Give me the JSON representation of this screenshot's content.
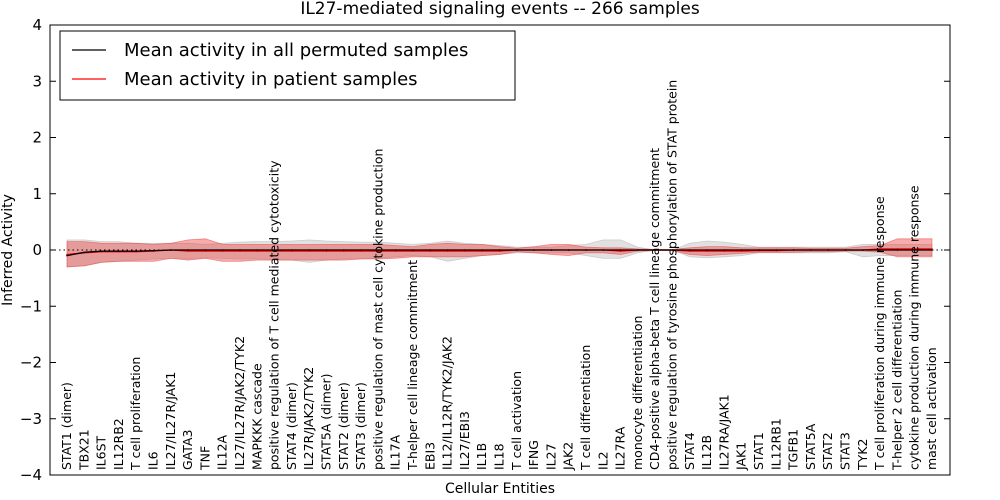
{
  "chart_data": {
    "type": "line",
    "title": "IL27-mediated signaling events -- 266 samples",
    "xlabel": "Cellular Entities",
    "ylabel": "Inferred Activity",
    "ylim": [
      -4,
      4
    ],
    "yticks": [
      -4,
      -3,
      -2,
      -1,
      0,
      1,
      2,
      3,
      4
    ],
    "ytick_labels": [
      "−4",
      "−3",
      "−2",
      "−1",
      "0",
      "1",
      "2",
      "3",
      "4"
    ],
    "categories": [
      "STAT1 (dimer)",
      "TBX21",
      "IL6ST",
      "IL12RB2",
      "T cell proliferation",
      "IL6",
      "IL27/IL27R/JAK1",
      "GATA3",
      "TNF",
      "IL12A",
      "IL27/IL27R/JAK2/TYK2",
      "MAPKKK cascade",
      "positive regulation of T cell mediated cytotoxicity",
      "STAT4 (dimer)",
      "IL27R/JAK2/TYK2",
      "STAT5A (dimer)",
      "STAT2 (dimer)",
      "STAT3 (dimer)",
      "positive regulation of mast cell cytokine production",
      "IL17A",
      "T-helper cell lineage commitment",
      "EBI3",
      "IL12/IL12R/TYK2/JAK2",
      "IL27/EBI3",
      "IL1B",
      "IL18",
      "T cell activation",
      "IFNG",
      "IL27",
      "JAK2",
      "T cell differentiation",
      "IL2",
      "IL27RA",
      "monocyte differentiation",
      "CD4-positive alpha-beta T cell lineage commitment",
      "positive regulation of tyrosine phosphorylation of STAT protein",
      "STAT4",
      "IL12B",
      "IL27RA/JAK1",
      "JAK1",
      "STAT1",
      "IL12RB1",
      "TGFB1",
      "STAT5A",
      "STAT2",
      "STAT3",
      "TYK2",
      "T cell proliferation during immune response",
      "T-helper 2 cell differentiation",
      "cytokine production during immune response",
      "mast cell activation"
    ],
    "series": [
      {
        "name": "Mean activity in all permuted samples",
        "color": "#000000",
        "values": [
          -0.1,
          -0.04,
          -0.02,
          -0.02,
          -0.02,
          -0.01,
          0.0,
          0.0,
          0.0,
          0.0,
          0.0,
          0.0,
          0.0,
          0.0,
          0.0,
          0.0,
          0.0,
          0.0,
          0.0,
          0.0,
          0.0,
          0.0,
          0.0,
          0.0,
          0.0,
          0.0,
          0.0,
          0.0,
          0.0,
          0.0,
          0.0,
          0.0,
          0.0,
          0.0,
          0.0,
          0.0,
          0.0,
          0.0,
          0.0,
          0.0,
          0.0,
          0.0,
          0.0,
          0.0,
          0.0,
          0.0,
          0.0,
          0.0,
          0.0,
          0.0,
          0.0
        ],
        "band_low": [
          -0.3,
          -0.28,
          -0.22,
          -0.2,
          -0.18,
          -0.16,
          -0.15,
          -0.16,
          -0.14,
          -0.15,
          -0.16,
          -0.16,
          -0.17,
          -0.18,
          -0.22,
          -0.18,
          -0.16,
          -0.16,
          -0.15,
          -0.12,
          -0.1,
          -0.12,
          -0.2,
          -0.15,
          -0.1,
          -0.08,
          -0.05,
          -0.05,
          -0.05,
          -0.05,
          -0.1,
          -0.15,
          -0.15,
          -0.05,
          0.0,
          0.0,
          -0.12,
          -0.14,
          -0.12,
          -0.1,
          -0.05,
          -0.05,
          -0.05,
          -0.05,
          -0.05,
          -0.03,
          -0.12,
          -0.1,
          -0.1,
          -0.1,
          -0.1
        ],
        "band_high": [
          0.18,
          0.18,
          0.15,
          0.15,
          0.12,
          0.12,
          0.12,
          0.12,
          0.1,
          0.12,
          0.14,
          0.15,
          0.15,
          0.16,
          0.18,
          0.16,
          0.15,
          0.14,
          0.14,
          0.12,
          0.1,
          0.12,
          0.16,
          0.12,
          0.1,
          0.08,
          0.05,
          0.05,
          0.05,
          0.08,
          0.1,
          0.18,
          0.18,
          0.05,
          0.0,
          0.0,
          0.12,
          0.16,
          0.14,
          0.1,
          0.05,
          0.05,
          0.05,
          0.05,
          0.05,
          0.05,
          0.1,
          0.1,
          0.1,
          0.1,
          0.1
        ]
      },
      {
        "name": "Mean activity in patient samples",
        "color": "#ff0000",
        "values": [
          -0.08,
          -0.05,
          -0.03,
          -0.03,
          -0.03,
          -0.02,
          0.0,
          -0.02,
          -0.02,
          -0.02,
          -0.02,
          -0.02,
          -0.02,
          -0.02,
          -0.02,
          -0.02,
          -0.02,
          -0.02,
          -0.02,
          -0.02,
          -0.02,
          -0.02,
          -0.02,
          -0.02,
          -0.02,
          -0.02,
          0.0,
          0.0,
          0.0,
          0.0,
          0.0,
          0.0,
          -0.02,
          0.0,
          0.0,
          0.0,
          -0.02,
          -0.02,
          -0.02,
          -0.02,
          -0.01,
          -0.01,
          0.0,
          0.0,
          0.0,
          0.0,
          0.0,
          0.02,
          0.02,
          0.02,
          0.02
        ],
        "band_low": [
          -0.3,
          -0.28,
          -0.22,
          -0.2,
          -0.2,
          -0.2,
          -0.15,
          -0.18,
          -0.15,
          -0.2,
          -0.2,
          -0.18,
          -0.18,
          -0.18,
          -0.18,
          -0.18,
          -0.18,
          -0.16,
          -0.16,
          -0.15,
          -0.12,
          -0.12,
          -0.12,
          -0.12,
          -0.1,
          -0.08,
          -0.03,
          -0.05,
          -0.08,
          -0.1,
          -0.05,
          -0.05,
          -0.08,
          -0.02,
          -0.01,
          -0.01,
          -0.08,
          -0.1,
          -0.08,
          -0.06,
          -0.04,
          -0.04,
          -0.04,
          -0.03,
          -0.03,
          -0.02,
          -0.02,
          -0.04,
          -0.12,
          -0.12,
          -0.12
        ],
        "band_high": [
          0.15,
          0.15,
          0.12,
          0.12,
          0.12,
          0.1,
          0.12,
          0.18,
          0.2,
          0.1,
          0.1,
          0.1,
          0.1,
          0.1,
          0.1,
          0.1,
          0.1,
          0.1,
          0.1,
          0.08,
          0.06,
          0.1,
          0.12,
          0.1,
          0.1,
          0.06,
          0.03,
          0.06,
          0.1,
          0.1,
          0.05,
          0.04,
          0.04,
          0.02,
          0.01,
          0.01,
          0.04,
          0.06,
          0.06,
          0.04,
          0.04,
          0.04,
          0.04,
          0.03,
          0.03,
          0.03,
          0.06,
          0.08,
          0.2,
          0.2,
          0.2
        ]
      }
    ],
    "legend": {
      "location": "top-left",
      "entries": [
        "Mean activity in all permuted samples",
        "Mean activity in patient samples"
      ]
    },
    "zero_reference_line": true,
    "grid": false
  }
}
